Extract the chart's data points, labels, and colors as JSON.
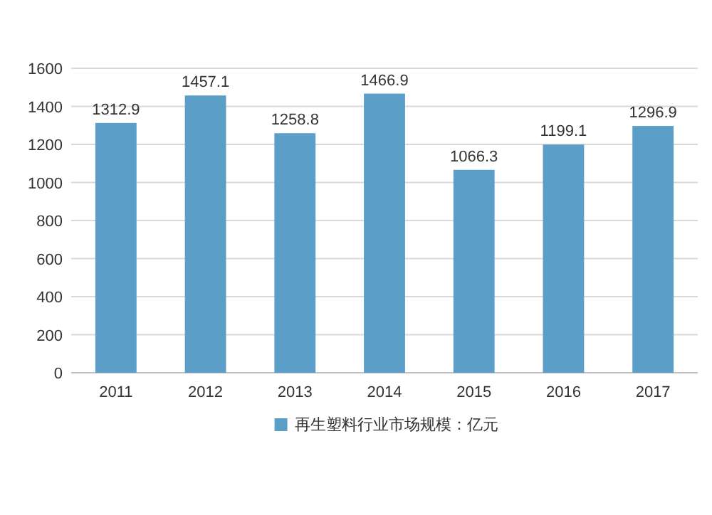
{
  "chart_data": {
    "type": "bar",
    "categories": [
      "2011",
      "2012",
      "2013",
      "2014",
      "2015",
      "2016",
      "2017"
    ],
    "series": [
      {
        "name": "再生塑料行业市场规模：亿元",
        "color": "#5b9fc8",
        "values": [
          1312.9,
          1457.1,
          1258.8,
          1466.9,
          1066.3,
          1199.1,
          1296.9
        ]
      }
    ],
    "ylim": [
      0,
      1600
    ],
    "yticks": [
      0,
      200,
      400,
      600,
      800,
      1000,
      1200,
      1400,
      1600
    ],
    "grid": "y",
    "legend": "bottom",
    "data_labels": true
  }
}
